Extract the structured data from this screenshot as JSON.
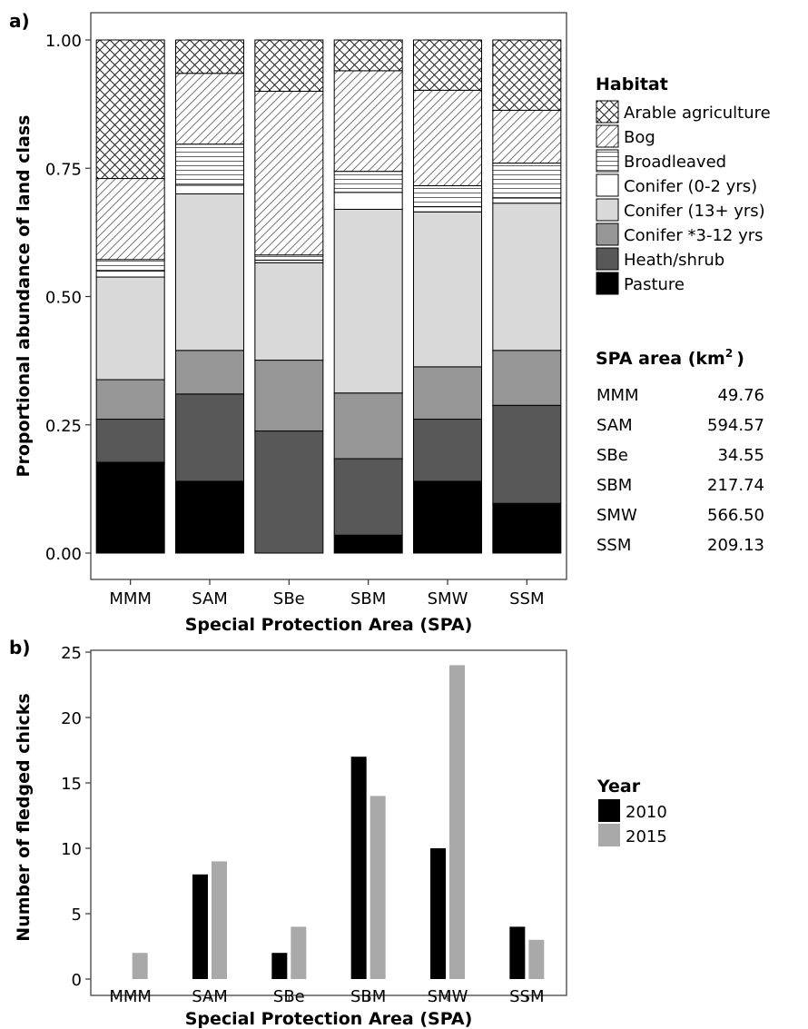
{
  "panel_a": {
    "label": "a)",
    "ylabel": "Proportional abundance of land class",
    "xlabel": "Special Protection Area (SPA)",
    "legend_title": "Habitat",
    "area_title_main": "SPA area (km",
    "area_title_sup": "2",
    "area_title_close": ")"
  },
  "panel_b": {
    "label": "b)",
    "ylabel": "Number of fledged chicks",
    "xlabel": "Special Protection Area (SPA)",
    "legend_title": "Year"
  },
  "spa_area": [
    {
      "spa": "MMM",
      "area": "49.76"
    },
    {
      "spa": "SAM",
      "area": "594.57"
    },
    {
      "spa": "SBe",
      "area": "34.55"
    },
    {
      "spa": "SBM",
      "area": "217.74"
    },
    {
      "spa": "SMW",
      "area": "566.50"
    },
    {
      "spa": "SSM",
      "area": "209.13"
    }
  ],
  "chart_data": [
    {
      "type": "bar",
      "stacked": true,
      "title": "",
      "xlabel": "Special Protection Area (SPA)",
      "ylabel": "Proportional abundance of land class",
      "ylim": [
        0,
        1
      ],
      "yticks": [
        "0.00",
        "0.25",
        "0.50",
        "0.75",
        "1.00"
      ],
      "categories": [
        "MMM",
        "SAM",
        "SBe",
        "SBM",
        "SMW",
        "SSM"
      ],
      "legend_title": "Habitat",
      "legend_position": "right",
      "series": [
        {
          "name": "Pasture",
          "fill": "#000000",
          "pattern": "none",
          "values": [
            0.177,
            0.14,
            0.0,
            0.035,
            0.14,
            0.097
          ]
        },
        {
          "name": "Heath/shrub",
          "fill": "#585858",
          "pattern": "none",
          "values": [
            0.084,
            0.17,
            0.238,
            0.149,
            0.121,
            0.191
          ]
        },
        {
          "name": "Conifer *3-12 yrs",
          "fill": "#969696",
          "pattern": "none",
          "values": [
            0.077,
            0.085,
            0.138,
            0.128,
            0.102,
            0.107
          ]
        },
        {
          "name": "Conifer (13+ yrs)",
          "fill": "#d9d9d9",
          "pattern": "none",
          "values": [
            0.2,
            0.305,
            0.19,
            0.358,
            0.302,
            0.287
          ]
        },
        {
          "name": "Conifer (0-2 yrs)",
          "fill": "#ffffff",
          "pattern": "none",
          "values": [
            0.012,
            0.017,
            0.005,
            0.033,
            0.01,
            0.01
          ]
        },
        {
          "name": "Broadleaved",
          "fill": "#ffffff",
          "pattern": "horizontal",
          "values": [
            0.022,
            0.08,
            0.01,
            0.041,
            0.041,
            0.068
          ]
        },
        {
          "name": "Bog",
          "fill": "#ffffff",
          "pattern": "diagonal",
          "values": [
            0.158,
            0.138,
            0.319,
            0.196,
            0.186,
            0.103
          ]
        },
        {
          "name": "Arable agriculture",
          "fill": "#ffffff",
          "pattern": "crosshatch",
          "values": [
            0.27,
            0.065,
            0.1,
            0.06,
            0.098,
            0.137
          ]
        }
      ],
      "legend_order": [
        "Arable agriculture",
        "Bog",
        "Broadleaved",
        "Conifer (0-2 yrs)",
        "Conifer (13+ yrs)",
        "Conifer *3-12 yrs",
        "Heath/shrub",
        "Pasture"
      ]
    },
    {
      "type": "bar",
      "stacked": false,
      "title": "",
      "xlabel": "Special Protection Area (SPA)",
      "ylabel": "Number of fledged chicks",
      "ylim": [
        0,
        25
      ],
      "yticks": [
        "0",
        "5",
        "10",
        "15",
        "20",
        "25"
      ],
      "categories": [
        "MMM",
        "SAM",
        "SBe",
        "SBM",
        "SMW",
        "SSM"
      ],
      "legend_title": "Year",
      "legend_position": "right",
      "series": [
        {
          "name": "2010",
          "color": "#000000",
          "values": [
            0,
            8,
            2,
            17,
            10,
            4
          ]
        },
        {
          "name": "2015",
          "color": "#a9a9a9",
          "values": [
            2,
            9,
            4,
            14,
            24,
            3
          ]
        }
      ]
    }
  ]
}
